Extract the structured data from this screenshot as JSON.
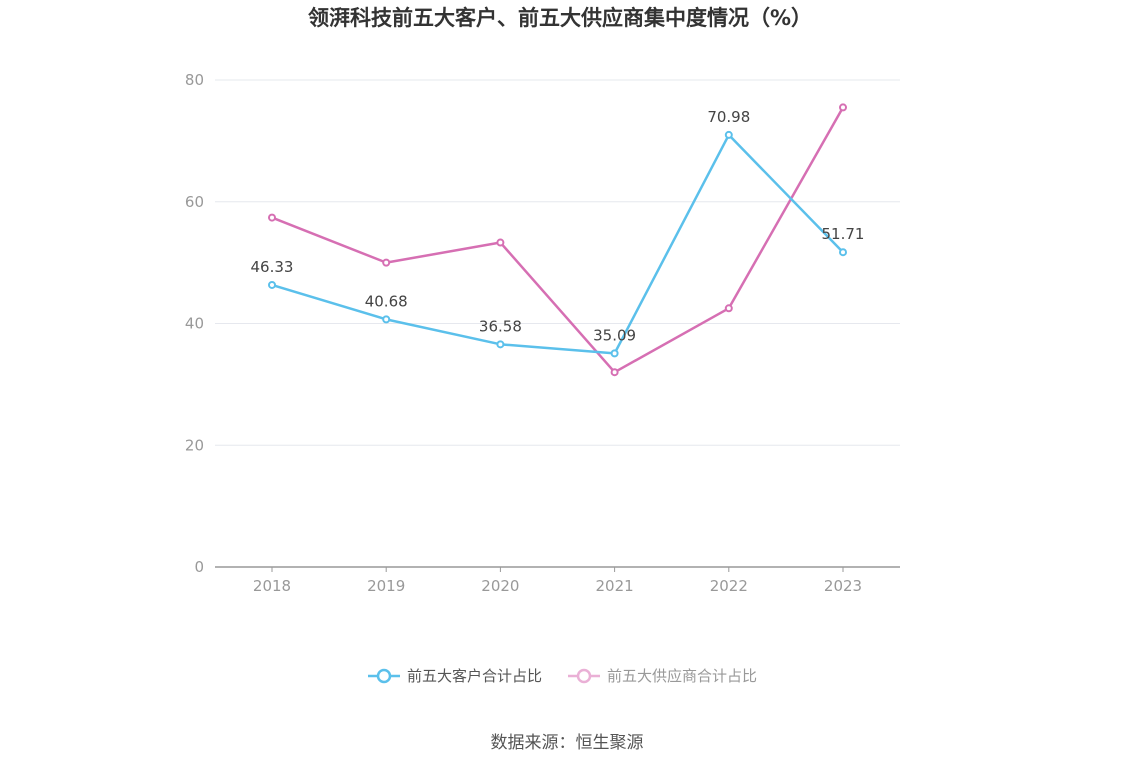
{
  "chart_data": {
    "type": "line",
    "title": "领湃科技前五大客户、前五大供应商集中度情况（%）",
    "x": [
      "2018",
      "2019",
      "2020",
      "2021",
      "2022",
      "2023"
    ],
    "ylim": [
      0,
      80
    ],
    "yticks": [
      "0",
      "20",
      "40",
      "60",
      "80"
    ],
    "grid": true,
    "legend_position": "bottom",
    "series": [
      {
        "name": "前五大客户合计占比",
        "color": "#5bc0eb",
        "values": [
          46.33,
          40.68,
          36.58,
          35.09,
          70.98,
          51.71
        ],
        "labels": [
          "46.33",
          "40.68",
          "36.58",
          "35.09",
          "70.98",
          "51.71"
        ]
      },
      {
        "name": "前五大供应商合计占比",
        "color": "#d66fb3",
        "legend_color": "#eab0d6",
        "values": [
          57.4,
          50.0,
          53.3,
          32.0,
          42.5,
          75.5
        ]
      }
    ]
  },
  "source": "数据来源：恒生聚源"
}
